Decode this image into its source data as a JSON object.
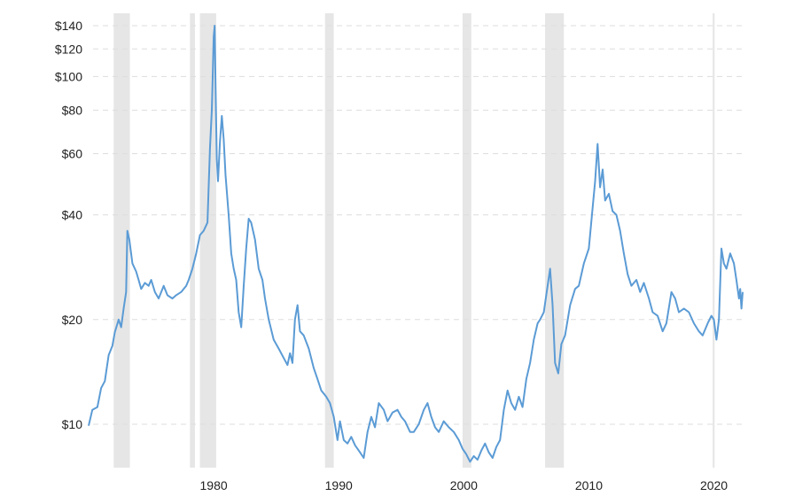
{
  "chart_data": {
    "type": "line",
    "title": "",
    "xlabel": "",
    "ylabel": "",
    "y_scale": "log",
    "xlim": [
      1970,
      2022.3
    ],
    "ylim": [
      7.5,
      152
    ],
    "grid": {
      "horizontal": true,
      "style": "dashed"
    },
    "y_ticks": [
      {
        "value": 10,
        "label": "$10"
      },
      {
        "value": 20,
        "label": "$20"
      },
      {
        "value": 40,
        "label": "$40"
      },
      {
        "value": 60,
        "label": "$60"
      },
      {
        "value": 80,
        "label": "$80"
      },
      {
        "value": 100,
        "label": "$100"
      },
      {
        "value": 120,
        "label": "$120"
      },
      {
        "value": 140,
        "label": "$140"
      }
    ],
    "x_ticks": [
      {
        "value": 1980,
        "label": "1980"
      },
      {
        "value": 1990,
        "label": "1990"
      },
      {
        "value": 2000,
        "label": "2000"
      },
      {
        "value": 2010,
        "label": "2010"
      },
      {
        "value": 2020,
        "label": "2020"
      }
    ],
    "recession_bands": [
      [
        1972.0,
        1973.3
      ],
      [
        1978.1,
        1978.5
      ],
      [
        1978.9,
        1980.2
      ],
      [
        1988.9,
        1989.6
      ],
      [
        1999.9,
        2000.6
      ],
      [
        2006.5,
        2008.0
      ],
      [
        2019.9,
        2020.05
      ]
    ],
    "series": [
      {
        "color": "#5b9bd5",
        "points": [
          [
            1970.0,
            9.9
          ],
          [
            1970.3,
            11.0
          ],
          [
            1970.7,
            11.2
          ],
          [
            1971.0,
            12.7
          ],
          [
            1971.3,
            13.3
          ],
          [
            1971.6,
            15.8
          ],
          [
            1971.9,
            16.8
          ],
          [
            1972.1,
            18.4
          ],
          [
            1972.4,
            20.0
          ],
          [
            1972.6,
            19.0
          ],
          [
            1972.8,
            21.5
          ],
          [
            1973.0,
            24.0
          ],
          [
            1973.1,
            36.0
          ],
          [
            1973.25,
            34.0
          ],
          [
            1973.5,
            29.0
          ],
          [
            1973.8,
            27.5
          ],
          [
            1974.0,
            26.0
          ],
          [
            1974.2,
            24.5
          ],
          [
            1974.5,
            25.5
          ],
          [
            1974.8,
            25.0
          ],
          [
            1975.0,
            26.0
          ],
          [
            1975.3,
            24.0
          ],
          [
            1975.6,
            23.0
          ],
          [
            1976.0,
            25.0
          ],
          [
            1976.3,
            23.5
          ],
          [
            1976.7,
            23.0
          ],
          [
            1977.0,
            23.5
          ],
          [
            1977.4,
            24.0
          ],
          [
            1977.8,
            25.0
          ],
          [
            1978.0,
            26.0
          ],
          [
            1978.3,
            28.0
          ],
          [
            1978.6,
            31.0
          ],
          [
            1978.9,
            35.0
          ],
          [
            1979.2,
            36.0
          ],
          [
            1979.5,
            38.0
          ],
          [
            1979.7,
            62.0
          ],
          [
            1979.85,
            80.0
          ],
          [
            1979.92,
            100.0
          ],
          [
            1980.0,
            130.0
          ],
          [
            1980.08,
            140.0
          ],
          [
            1980.15,
            95.0
          ],
          [
            1980.25,
            58.0
          ],
          [
            1980.35,
            50.0
          ],
          [
            1980.5,
            65.0
          ],
          [
            1980.65,
            77.0
          ],
          [
            1980.8,
            66.0
          ],
          [
            1980.95,
            52.0
          ],
          [
            1981.2,
            40.0
          ],
          [
            1981.4,
            31.0
          ],
          [
            1981.6,
            28.0
          ],
          [
            1981.8,
            26.0
          ],
          [
            1982.0,
            21.0
          ],
          [
            1982.2,
            19.0
          ],
          [
            1982.4,
            25.0
          ],
          [
            1982.6,
            32.0
          ],
          [
            1982.8,
            39.0
          ],
          [
            1983.0,
            38.0
          ],
          [
            1983.3,
            34.0
          ],
          [
            1983.6,
            28.0
          ],
          [
            1983.9,
            26.0
          ],
          [
            1984.1,
            23.0
          ],
          [
            1984.4,
            20.0
          ],
          [
            1984.8,
            17.5
          ],
          [
            1985.2,
            16.5
          ],
          [
            1985.6,
            15.5
          ],
          [
            1985.9,
            14.8
          ],
          [
            1986.1,
            16.0
          ],
          [
            1986.3,
            15.0
          ],
          [
            1986.5,
            20.0
          ],
          [
            1986.7,
            22.0
          ],
          [
            1986.9,
            18.5
          ],
          [
            1987.2,
            18.0
          ],
          [
            1987.6,
            16.5
          ],
          [
            1988.0,
            14.5
          ],
          [
            1988.3,
            13.5
          ],
          [
            1988.6,
            12.5
          ],
          [
            1989.0,
            12.0
          ],
          [
            1989.3,
            11.5
          ],
          [
            1989.6,
            10.5
          ],
          [
            1989.9,
            9.0
          ],
          [
            1990.1,
            10.2
          ],
          [
            1990.4,
            9.0
          ],
          [
            1990.7,
            8.8
          ],
          [
            1991.0,
            9.2
          ],
          [
            1991.3,
            8.7
          ],
          [
            1991.7,
            8.3
          ],
          [
            1992.0,
            8.0
          ],
          [
            1992.3,
            9.5
          ],
          [
            1992.6,
            10.5
          ],
          [
            1992.9,
            9.8
          ],
          [
            1993.2,
            11.5
          ],
          [
            1993.6,
            11.0
          ],
          [
            1993.9,
            10.2
          ],
          [
            1994.3,
            10.8
          ],
          [
            1994.7,
            11.0
          ],
          [
            1995.0,
            10.5
          ],
          [
            1995.3,
            10.2
          ],
          [
            1995.7,
            9.5
          ],
          [
            1996.0,
            9.5
          ],
          [
            1996.4,
            10.0
          ],
          [
            1996.8,
            11.0
          ],
          [
            1997.1,
            11.5
          ],
          [
            1997.4,
            10.5
          ],
          [
            1997.7,
            9.8
          ],
          [
            1998.0,
            9.5
          ],
          [
            1998.4,
            10.2
          ],
          [
            1998.8,
            9.8
          ],
          [
            1999.2,
            9.5
          ],
          [
            1999.6,
            9.0
          ],
          [
            1999.9,
            8.5
          ],
          [
            2000.2,
            8.2
          ],
          [
            2000.5,
            7.8
          ],
          [
            2000.8,
            8.1
          ],
          [
            2001.1,
            7.9
          ],
          [
            2001.4,
            8.4
          ],
          [
            2001.7,
            8.8
          ],
          [
            2002.0,
            8.3
          ],
          [
            2002.3,
            8.0
          ],
          [
            2002.6,
            8.6
          ],
          [
            2002.9,
            9.0
          ],
          [
            2003.2,
            11.0
          ],
          [
            2003.5,
            12.5
          ],
          [
            2003.8,
            11.5
          ],
          [
            2004.1,
            11.0
          ],
          [
            2004.4,
            12.0
          ],
          [
            2004.7,
            11.2
          ],
          [
            2005.0,
            13.5
          ],
          [
            2005.3,
            15.0
          ],
          [
            2005.6,
            17.5
          ],
          [
            2005.9,
            19.5
          ],
          [
            2006.1,
            20.0
          ],
          [
            2006.4,
            21.0
          ],
          [
            2006.7,
            25.0
          ],
          [
            2006.9,
            28.0
          ],
          [
            2007.1,
            22.0
          ],
          [
            2007.3,
            15.0
          ],
          [
            2007.55,
            14.0
          ],
          [
            2007.8,
            17.0
          ],
          [
            2008.1,
            18.0
          ],
          [
            2008.5,
            22.0
          ],
          [
            2008.9,
            24.5
          ],
          [
            2009.2,
            25.0
          ],
          [
            2009.6,
            29.0
          ],
          [
            2010.0,
            32.0
          ],
          [
            2010.3,
            42.0
          ],
          [
            2010.5,
            50.0
          ],
          [
            2010.7,
            64.0
          ],
          [
            2010.9,
            48.0
          ],
          [
            2011.1,
            54.0
          ],
          [
            2011.3,
            44.0
          ],
          [
            2011.6,
            46.0
          ],
          [
            2011.9,
            41.0
          ],
          [
            2012.2,
            40.0
          ],
          [
            2012.5,
            36.0
          ],
          [
            2012.8,
            31.0
          ],
          [
            2013.1,
            27.0
          ],
          [
            2013.4,
            25.0
          ],
          [
            2013.8,
            26.0
          ],
          [
            2014.1,
            24.0
          ],
          [
            2014.4,
            25.5
          ],
          [
            2014.8,
            23.0
          ],
          [
            2015.1,
            21.0
          ],
          [
            2015.5,
            20.5
          ],
          [
            2015.9,
            18.5
          ],
          [
            2016.2,
            19.5
          ],
          [
            2016.6,
            24.0
          ],
          [
            2016.9,
            23.0
          ],
          [
            2017.2,
            21.0
          ],
          [
            2017.6,
            21.5
          ],
          [
            2018.0,
            21.0
          ],
          [
            2018.4,
            19.5
          ],
          [
            2018.8,
            18.5
          ],
          [
            2019.1,
            18.0
          ],
          [
            2019.5,
            19.5
          ],
          [
            2019.8,
            20.5
          ],
          [
            2020.0,
            20.0
          ],
          [
            2020.2,
            17.5
          ],
          [
            2020.4,
            20.0
          ],
          [
            2020.6,
            32.0
          ],
          [
            2020.8,
            29.0
          ],
          [
            2021.0,
            28.0
          ],
          [
            2021.3,
            31.0
          ],
          [
            2021.6,
            29.0
          ],
          [
            2021.8,
            26.0
          ],
          [
            2022.0,
            23.0
          ],
          [
            2022.1,
            24.5
          ],
          [
            2022.2,
            21.5
          ],
          [
            2022.3,
            24.0
          ]
        ]
      }
    ]
  }
}
